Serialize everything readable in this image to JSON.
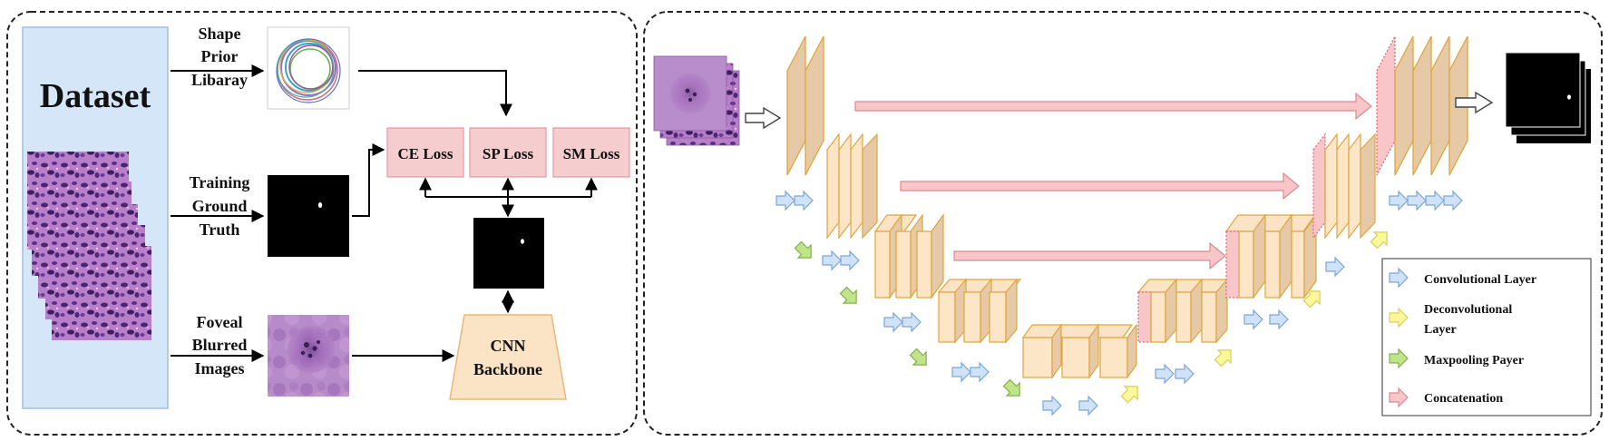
{
  "left_panel": {
    "dataset_label": "Dataset",
    "shape_prior": [
      "Shape",
      "Prior",
      "Libaray"
    ],
    "training_gt": [
      "Training",
      "Ground",
      "Truth"
    ],
    "foveal": [
      "Foveal",
      "Blurred",
      "Images"
    ],
    "losses": [
      "CE Loss",
      "SP Loss",
      "SM Loss"
    ],
    "backbone": [
      "CNN",
      "Backbone"
    ]
  },
  "legend": {
    "items": [
      {
        "lines": [
          "Convolutional Layer"
        ],
        "color": "#cfe2f7",
        "stroke": "#7aa7d8"
      },
      {
        "lines": [
          "Deconvolutional",
          "Layer"
        ],
        "color": "#fbf79b",
        "stroke": "#d8cf58"
      },
      {
        "lines": [
          "Maxpooling Payer"
        ],
        "color": "#bfe48a",
        "stroke": "#86b04c"
      },
      {
        "lines": [
          "Concatenation"
        ],
        "color": "#f8c6c8",
        "stroke": "#d88c90"
      }
    ]
  },
  "colors": {
    "dataset_panel": "#d6e6f9",
    "loss_box": "#f6cdcf",
    "backbone": "#fbe3c6",
    "block_face": "#e6c9a6",
    "block_light": "#fde5c8",
    "block_stroke": "#e0a53e",
    "histo": "#9a5cb3",
    "blur": "#b07cc0"
  }
}
